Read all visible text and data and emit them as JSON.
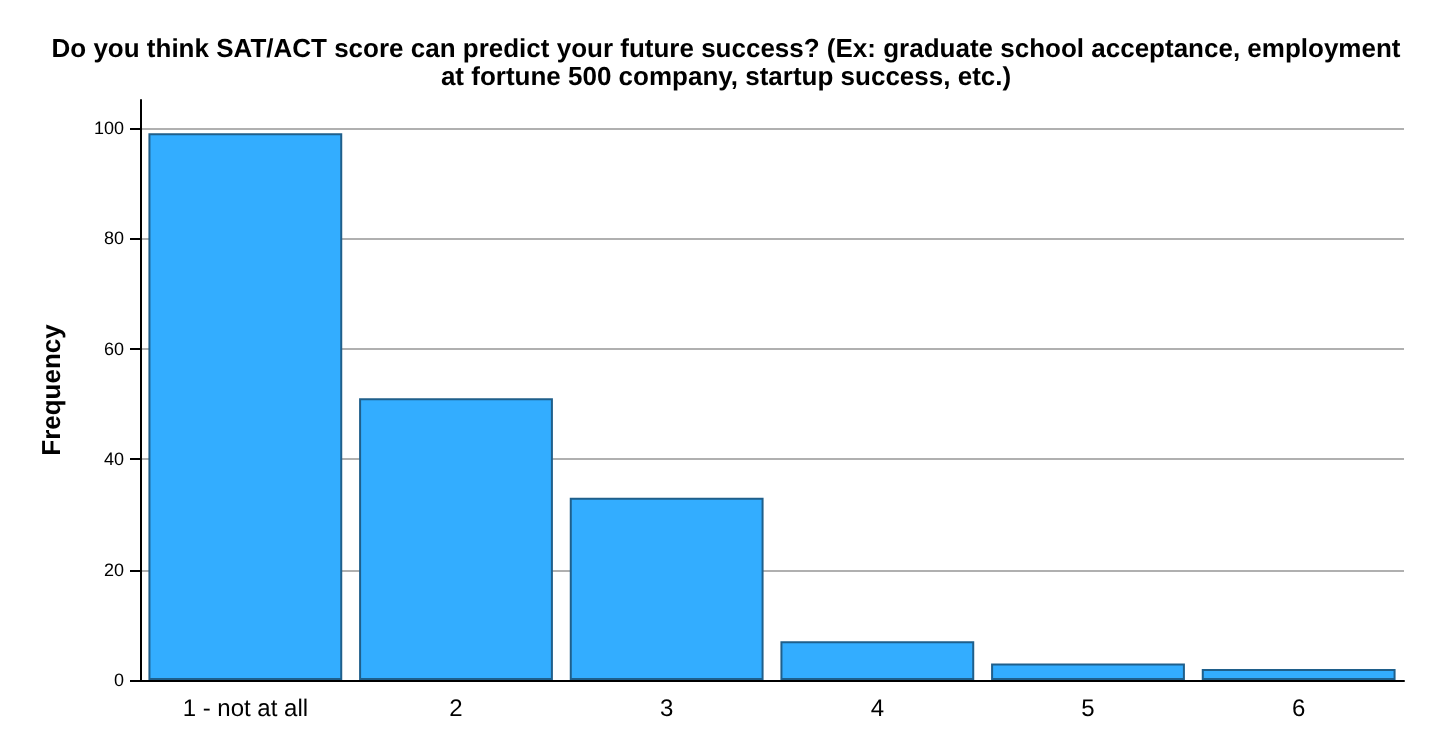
{
  "chart_data": {
    "type": "bar",
    "title": "Do you think SAT/ACT score can predict your future success? (Ex: graduate school acceptance, employment\nat fortune 500 company, startup success, etc.)",
    "ylabel": "Frequency",
    "categories": [
      "1 - not at all",
      "2",
      "3",
      "4",
      "5",
      "6"
    ],
    "values": [
      99,
      51,
      33,
      7,
      3,
      2
    ],
    "color": "#33adff",
    "ylim": [
      0,
      105
    ],
    "yticks": [
      0,
      20,
      40,
      60,
      80,
      100
    ],
    "grid": "y"
  }
}
